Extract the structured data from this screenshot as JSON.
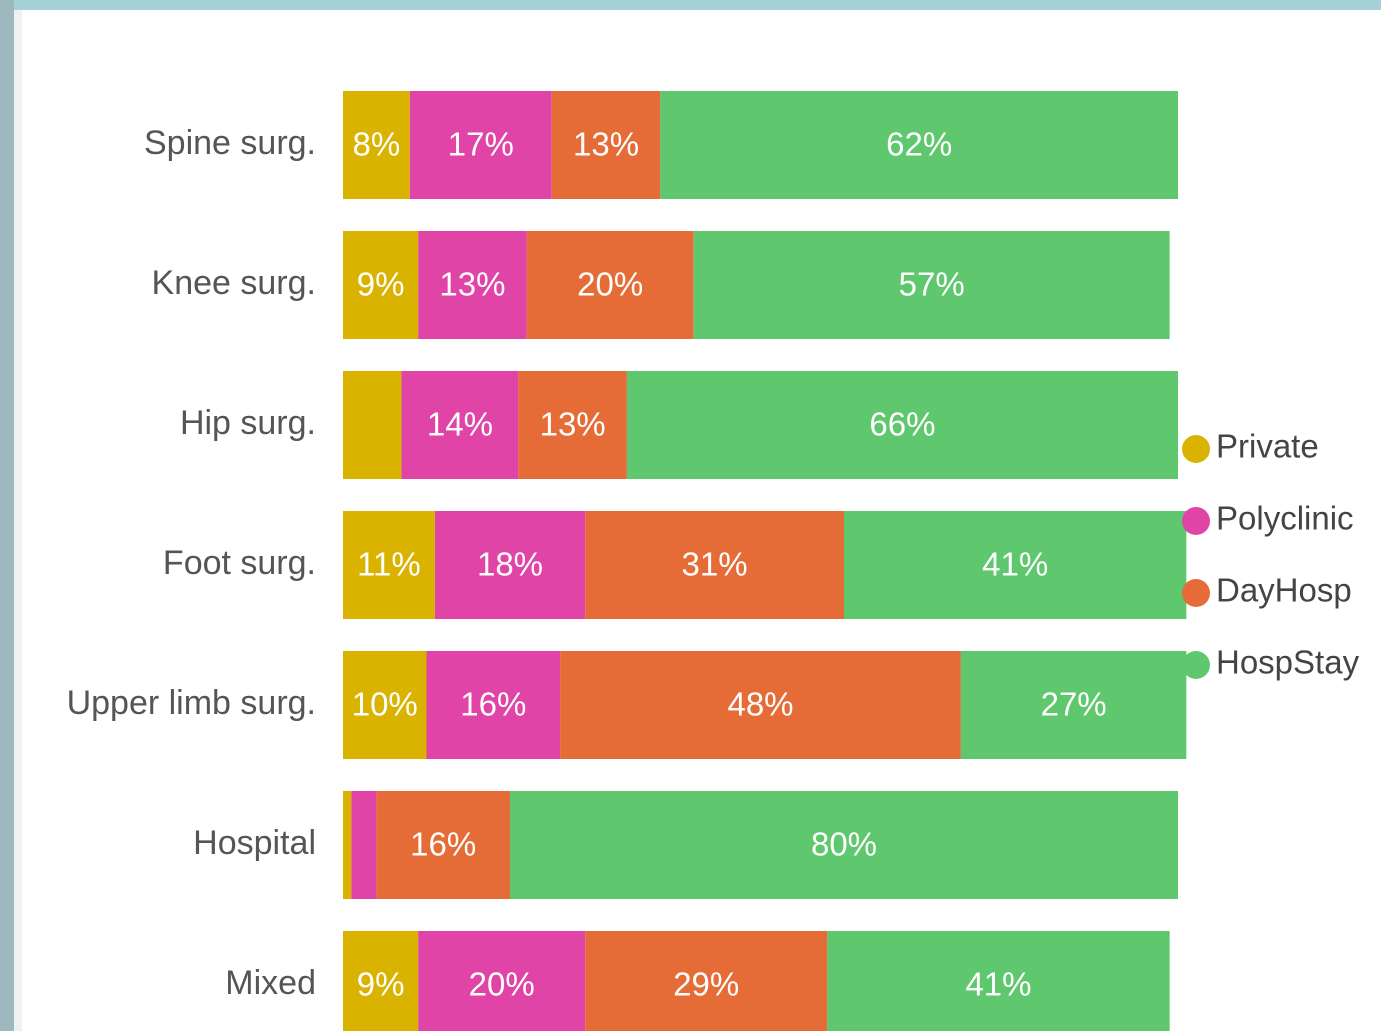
{
  "chart_data": {
    "type": "stacked_barh",
    "categories": [
      "Spine surg.",
      "Knee surg.",
      "Hip surg.",
      "Foot surg.",
      "Upper limb surg.",
      "Hospital",
      "Mixed"
    ],
    "series": [
      {
        "name": "Private",
        "color": "#d9b300",
        "values": [
          8,
          9,
          7,
          11,
          10,
          1,
          9
        ],
        "value_labels": [
          "8%",
          "9%",
          null,
          "11%",
          "10%",
          null,
          "9%"
        ]
      },
      {
        "name": "Polyclinic",
        "color": "#e044a7",
        "values": [
          17,
          13,
          14,
          18,
          16,
          3,
          20
        ],
        "value_labels": [
          "17%",
          "13%",
          "14%",
          "18%",
          "16%",
          null,
          "20%"
        ]
      },
      {
        "name": "DayHosp",
        "color": "#e66c37",
        "values": [
          13,
          20,
          13,
          31,
          48,
          16,
          29
        ],
        "value_labels": [
          "13%",
          "20%",
          "13%",
          "31%",
          "48%",
          "16%",
          "29%"
        ]
      },
      {
        "name": "HospStay",
        "color": "#5fc86e",
        "values": [
          62,
          57,
          66,
          41,
          27,
          80,
          41
        ],
        "value_labels": [
          "62%",
          "57%",
          "66%",
          "41%",
          "27%",
          "80%",
          "41%"
        ]
      }
    ],
    "xlim": [
      0,
      100
    ],
    "legend": "right"
  }
}
